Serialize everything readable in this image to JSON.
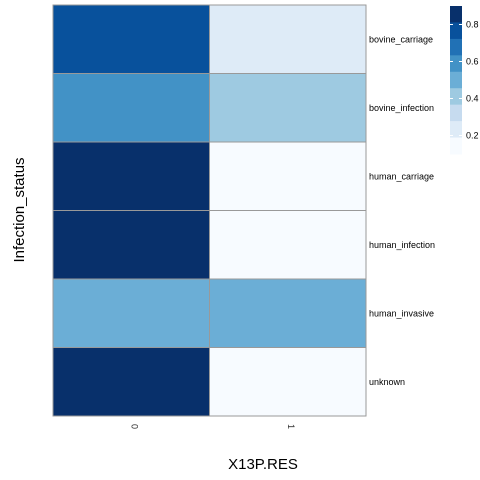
{
  "chart_data": {
    "type": "heatmap",
    "xlabel": "X13P.RES",
    "ylabel": "Infection_status",
    "x_categories": [
      "0",
      "1"
    ],
    "y_categories": [
      "bovine_carriage",
      "bovine_infection",
      "human_carriage",
      "human_infection",
      "human_invasive",
      "unknown"
    ],
    "values": [
      [
        0.8,
        0.2
      ],
      [
        0.6,
        0.4
      ],
      [
        1.0,
        0.0
      ],
      [
        1.0,
        0.0
      ],
      [
        0.5,
        0.5
      ],
      [
        1.0,
        0.0
      ]
    ],
    "color_range": [
      0.1,
      0.9
    ],
    "legend": {
      "ticks": [
        0.2,
        0.4,
        0.6,
        0.8
      ],
      "placement": "top-right"
    },
    "colors": {
      "low": "#f7fbff",
      "high": "#08306b",
      "cell_border": "#999999"
    }
  }
}
